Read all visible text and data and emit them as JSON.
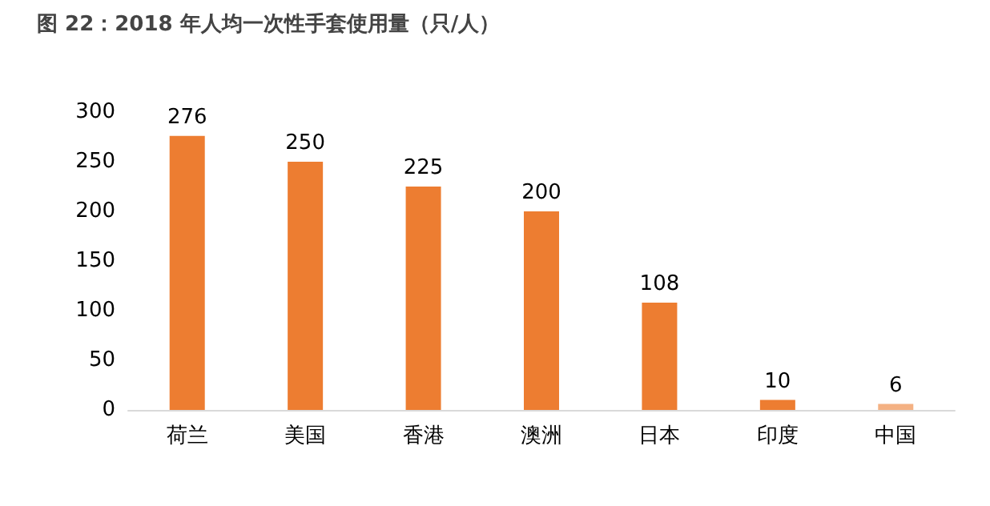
{
  "chart_data": {
    "type": "bar",
    "title": "图 22：2018 年人均一次性手套使用量（只/人）",
    "categories": [
      "荷兰",
      "美国",
      "香港",
      "澳洲",
      "日本",
      "印度",
      "中国"
    ],
    "values": [
      276,
      250,
      225,
      200,
      108,
      10,
      6
    ],
    "colors": [
      "#ed7d31",
      "#ed7d31",
      "#ed7d31",
      "#ed7d31",
      "#ed7d31",
      "#ed7d31",
      "#f4b183"
    ],
    "ylim": [
      0,
      300
    ],
    "yticks": [
      0,
      50,
      100,
      150,
      200,
      250,
      300
    ],
    "grid": false,
    "data_labels": true
  }
}
